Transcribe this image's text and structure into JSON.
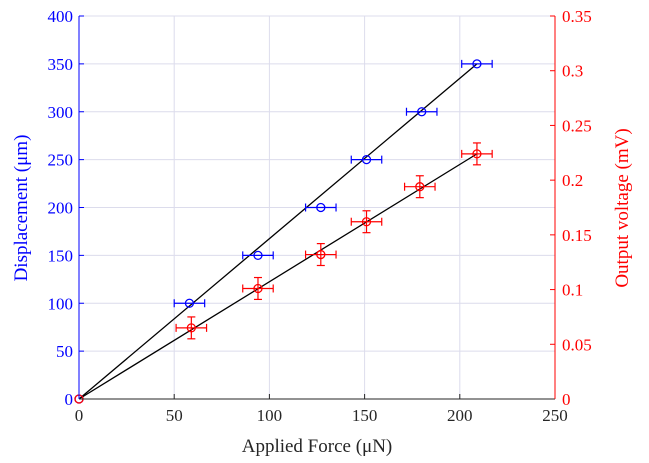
{
  "chart_data": {
    "type": "scatter",
    "title": "",
    "xlabel": "Applied Force (μN)",
    "ylabel_left": "Displacement (μm)",
    "ylabel_right": "Output voltage (mV)",
    "xlim": [
      0,
      250
    ],
    "ylim_left": [
      0,
      400
    ],
    "ylim_right": [
      0,
      0.35
    ],
    "x_ticks": [
      "0",
      "50",
      "100",
      "150",
      "200",
      "250"
    ],
    "y_left_ticks": [
      "0",
      "50",
      "100",
      "150",
      "200",
      "250",
      "300",
      "350",
      "400"
    ],
    "y_right_ticks": [
      "0",
      "0.05",
      "0.1",
      "0.15",
      "0.2",
      "0.25",
      "0.3",
      "0.35"
    ],
    "grid": true,
    "series": [
      {
        "axis": "left",
        "color": "#0000ff",
        "marker": "circle",
        "x": [
          0,
          58,
          94,
          127,
          151,
          180,
          209
        ],
        "y": [
          0,
          100,
          150,
          200,
          250,
          300,
          350
        ],
        "x_error": [
          0,
          8,
          8,
          8,
          8,
          8,
          8
        ],
        "fit_line": {
          "x": [
            0,
            209
          ],
          "y": [
            0,
            350
          ]
        }
      },
      {
        "axis": "right",
        "color": "#ff0000",
        "marker": "circle",
        "x": [
          0,
          59,
          94,
          127,
          151,
          179,
          209
        ],
        "y": [
          0,
          0.065,
          0.101,
          0.132,
          0.162,
          0.194,
          0.224
        ],
        "x_error": [
          0,
          8,
          8,
          8,
          8,
          8,
          8
        ],
        "y_error": [
          0,
          0.01,
          0.01,
          0.01,
          0.01,
          0.01,
          0.01
        ],
        "fit_line": {
          "x": [
            0,
            209
          ],
          "y": [
            0,
            0.224
          ]
        }
      }
    ],
    "colors": {
      "left_axis": "#0000ff",
      "right_axis": "#ff0000",
      "bottom_axis": "#262626",
      "grid": "#dcdcec",
      "fit": "#000000"
    }
  }
}
